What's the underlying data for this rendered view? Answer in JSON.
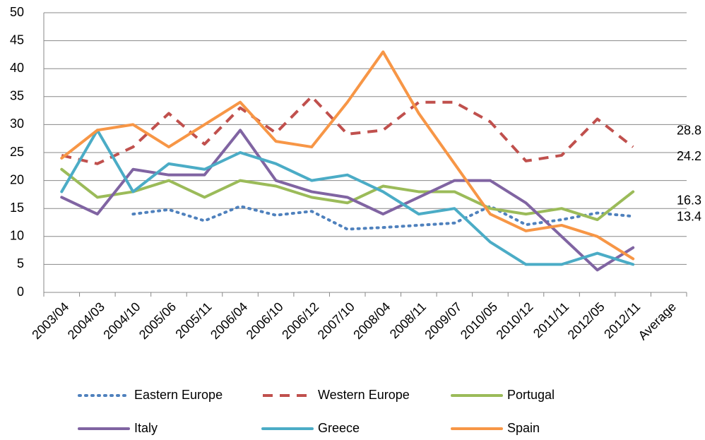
{
  "chart_data": {
    "type": "line",
    "categories": [
      "2003/04",
      "2004/03",
      "2004/10",
      "2005/06",
      "2005/11",
      "2006/04",
      "2006/10",
      "2006/12",
      "2007/10",
      "2008/04",
      "2008/11",
      "2009/07",
      "2010/05",
      "2010/12",
      "2011/11",
      "2012/05",
      "2012/11",
      "Average"
    ],
    "series": [
      {
        "name": "Eastern Europe",
        "color": "#4f81bd",
        "dash": "dotted",
        "values": [
          null,
          null,
          14,
          14.8,
          12.8,
          15.4,
          13.8,
          14.5,
          11.3,
          11.6,
          12,
          12.4,
          15.4,
          12.1,
          13,
          14.2,
          13.6,
          null
        ]
      },
      {
        "name": "Western Europe",
        "color": "#c0504d",
        "dash": "dashed",
        "values": [
          24.5,
          23,
          26,
          32,
          26.5,
          33,
          28.5,
          35,
          28.3,
          29,
          34,
          34,
          30.5,
          23.5,
          24.5,
          31,
          26,
          null
        ]
      },
      {
        "name": "Portugal",
        "color": "#9bbb59",
        "dash": "solid",
        "values": [
          22,
          17,
          18,
          20,
          17,
          20,
          19,
          17,
          16,
          19,
          18,
          18,
          15,
          14,
          15,
          13,
          18,
          null
        ]
      },
      {
        "name": "Italy",
        "color": "#8064a2",
        "dash": "solid",
        "values": [
          17,
          14,
          22,
          21,
          21,
          29,
          20,
          18,
          17,
          14,
          17,
          20,
          20,
          16,
          10,
          4,
          8,
          null
        ]
      },
      {
        "name": "Greece",
        "color": "#4bacc6",
        "dash": "solid",
        "values": [
          18,
          29,
          18,
          23,
          22,
          25,
          23,
          20,
          21,
          18,
          14,
          15,
          9,
          5,
          5,
          7,
          5,
          null
        ]
      },
      {
        "name": "Spain",
        "color": "#f79646",
        "dash": "solid",
        "values": [
          24,
          29,
          30,
          26,
          30,
          34,
          27,
          26,
          34,
          43,
          32,
          23,
          14,
          11,
          12,
          10,
          6,
          null
        ]
      }
    ],
    "average_labels": [
      28.8,
      24.2,
      16.3,
      13.4
    ],
    "ylim": [
      0,
      50
    ],
    "yticks": [
      0,
      5,
      10,
      15,
      20,
      25,
      30,
      35,
      40,
      45,
      50
    ],
    "grid": true,
    "legend": "bottom"
  }
}
